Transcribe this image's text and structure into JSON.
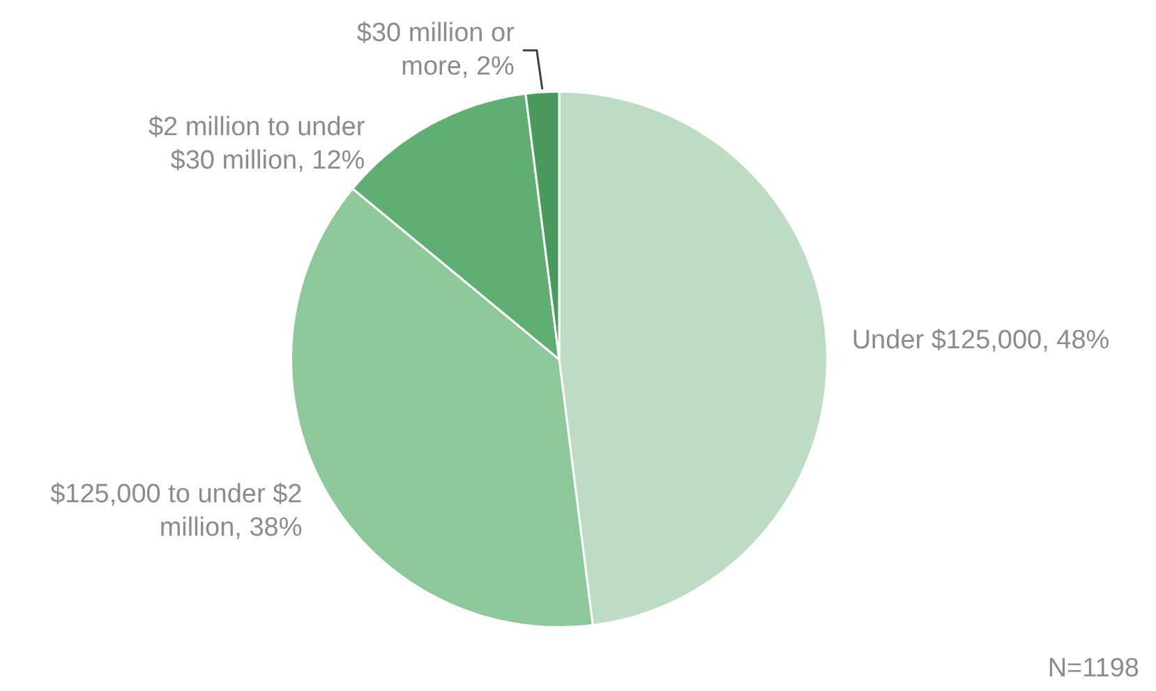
{
  "chart_data": {
    "type": "pie",
    "categories": [
      "Under $125,000",
      "$125,000 to under $2 million",
      "$2 million to under $30 million",
      "$30 million or more"
    ],
    "values": [
      48,
      38,
      12,
      2
    ],
    "value_labels": [
      "48%",
      "38%",
      "12%",
      "2%"
    ],
    "colors": [
      "#bddcc3",
      "#8dc89a",
      "#5fae73",
      "#4a9a60"
    ],
    "legend": false,
    "annotations": [
      "N=1198"
    ]
  }
}
